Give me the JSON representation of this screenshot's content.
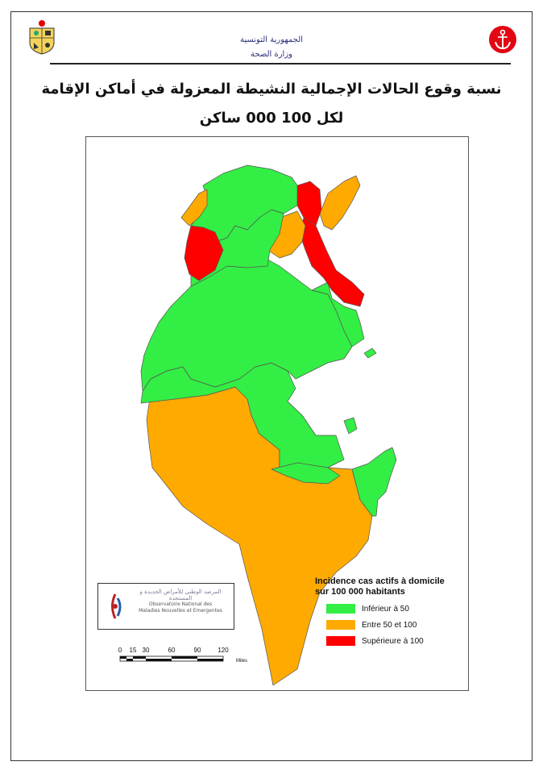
{
  "header": {
    "republic": "الجمهورية التونسية",
    "ministry": "وزارة الصحة",
    "emblem_icon": "tunisia-coat-of-arms-icon",
    "ministry_logo_icon": "ministry-health-anchor-logo-icon"
  },
  "title": {
    "line1": "نسبة وقوع الحالات الإجمالية النشيطة المعزولة في أماكن الإقامة",
    "line2": "لكل 100 000 ساكن"
  },
  "observatory": {
    "name_ar": "المرصد الوطني للأمراض الجديدة و المستجدة",
    "name_fr_1": "Observatoire National des",
    "name_fr_2": "Maladies Nouvelles et Emergentes"
  },
  "legend": {
    "title_line1": "Incidence cas actifs à domicile",
    "title_line2": "sur 100 000 habitants",
    "items": [
      {
        "label": "Inférieur à 50",
        "color": "#33ee44"
      },
      {
        "label": "Entre 50 et 100",
        "color": "#ffaa00"
      },
      {
        "label": "Supérieure à 100",
        "color": "#ff0000"
      }
    ]
  },
  "scale_bar": {
    "ticks": [
      "0",
      "15",
      "30",
      "60",
      "90",
      "120"
    ],
    "unit": "Miles"
  },
  "colors": {
    "low": "#33ee44",
    "medium": "#ffaa00",
    "high": "#ff0000",
    "border": "#555555"
  }
}
